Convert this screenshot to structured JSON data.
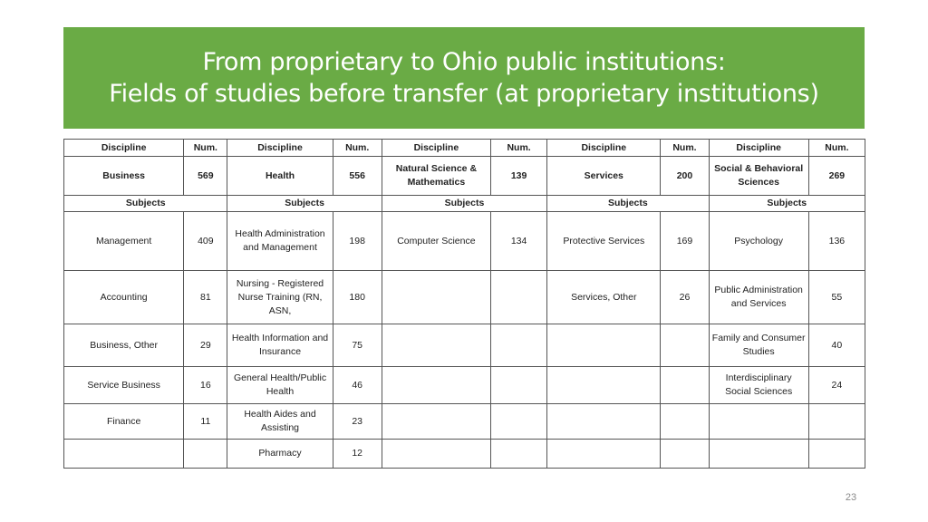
{
  "title": {
    "line1": "From proprietary to Ohio public institutions:",
    "line2": "Fields of studies before transfer (at proprietary institutions)"
  },
  "table": {
    "header": {
      "discipline": "Discipline",
      "num": "Num."
    },
    "disciplines": [
      {
        "name": "Business",
        "num": "569"
      },
      {
        "name": "Health",
        "num": "556"
      },
      {
        "name": "Natural Science & Mathematics",
        "num": "139"
      },
      {
        "name": "Services",
        "num": "200"
      },
      {
        "name": "Social & Behavioral Sciences",
        "num": "269"
      }
    ],
    "subjects_label": "Subjects",
    "rows": [
      [
        [
          "Management",
          "409"
        ],
        [
          "Health Administration and Management",
          "198"
        ],
        [
          "Computer Science",
          "134"
        ],
        [
          "Protective Services",
          "169"
        ],
        [
          "Psychology",
          "136"
        ]
      ],
      [
        [
          "Accounting",
          "81"
        ],
        [
          "Nursing - Registered Nurse Training (RN, ASN,",
          "180"
        ],
        [
          "",
          ""
        ],
        [
          "Services, Other",
          "26"
        ],
        [
          "Public Administration and Services",
          "55"
        ]
      ],
      [
        [
          "Business, Other",
          "29"
        ],
        [
          "Health Information and Insurance",
          "75"
        ],
        [
          "",
          ""
        ],
        [
          "",
          ""
        ],
        [
          "Family and Consumer Studies",
          "40"
        ]
      ],
      [
        [
          "Service Business",
          "16"
        ],
        [
          "General Health/Public Health",
          "46"
        ],
        [
          "",
          ""
        ],
        [
          "",
          ""
        ],
        [
          "Interdisciplinary Social Sciences",
          "24"
        ]
      ],
      [
        [
          "Finance",
          "11"
        ],
        [
          "Health Aides and Assisting",
          "23"
        ],
        [
          "",
          ""
        ],
        [
          "",
          ""
        ],
        [
          "",
          ""
        ]
      ],
      [
        [
          "",
          ""
        ],
        [
          "Pharmacy",
          "12"
        ],
        [
          "",
          ""
        ],
        [
          "",
          ""
        ],
        [
          "",
          ""
        ]
      ]
    ]
  },
  "page_number": "23"
}
